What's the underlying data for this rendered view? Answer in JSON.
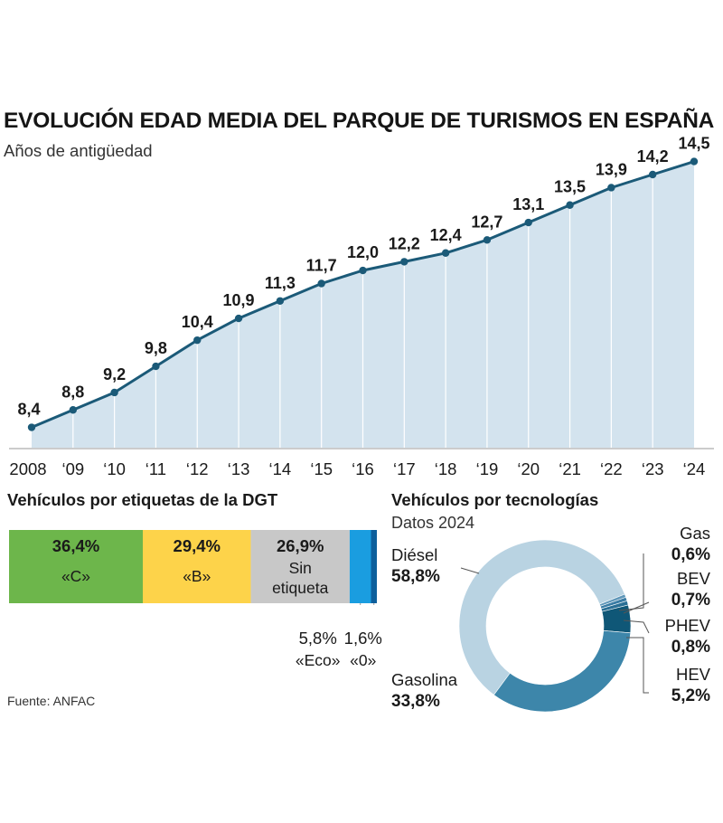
{
  "title": "EVOLUCIÓN EDAD MEDIA DEL PARQUE DE TURISMOS EN ESPAÑA",
  "subtitle": "Años de antigüedad",
  "chart_data": [
    {
      "type": "area",
      "title": "EVOLUCIÓN EDAD MEDIA DEL PARQUE DE TURISMOS EN ESPAÑA",
      "ylabel": "Años de antigüedad",
      "categories": [
        "2008",
        "‘09",
        "‘10",
        "‘11",
        "‘12",
        "‘13",
        "‘14",
        "‘15",
        "‘16",
        "‘17",
        "‘18",
        "‘19",
        "‘20",
        "‘21",
        "‘22",
        "‘23",
        "‘24"
      ],
      "values": [
        8.4,
        8.8,
        9.2,
        9.8,
        10.4,
        10.9,
        11.3,
        11.7,
        12.0,
        12.2,
        12.4,
        12.7,
        13.1,
        13.5,
        13.9,
        14.2,
        14.5
      ],
      "value_labels": [
        "8,4",
        "8,8",
        "9,2",
        "9,8",
        "10,4",
        "10,9",
        "11,3",
        "11,7",
        "12,0",
        "12,2",
        "12,4",
        "12,7",
        "13,1",
        "13,5",
        "13,9",
        "14,2",
        "14,5"
      ],
      "ylim": [
        7,
        15.3
      ],
      "grid": false,
      "colors": {
        "line": "#1b5a78",
        "fill": "#d3e3ee",
        "grid": "#ffffff",
        "axis": "#999999"
      }
    },
    {
      "type": "bar",
      "stacked": true,
      "title": "Vehículos por etiquetas de la DGT",
      "segments": [
        {
          "value": 36.4,
          "label": "36,4%",
          "tag": "«C»",
          "color": "#6db64b"
        },
        {
          "value": 29.4,
          "label": "29,4%",
          "tag": "«B»",
          "color": "#fdd34a"
        },
        {
          "value": 26.9,
          "label": "26,9%",
          "tag": "Sin etiqueta",
          "color": "#c8c8c8"
        },
        {
          "value": 5.8,
          "label": "5,8%",
          "tag": "«Eco»",
          "color": "#1a9de0"
        },
        {
          "value": 1.6,
          "label": "1,6%",
          "tag": "«0»",
          "color": "#0d5f9c"
        }
      ]
    },
    {
      "type": "pie",
      "donut": true,
      "title": "Vehículos por tecnologías",
      "subtitle": "Datos 2024",
      "slices": [
        {
          "name": "Diésel",
          "value": 58.8,
          "label": "58,8%",
          "color": "#b9d3e2"
        },
        {
          "name": "Gas",
          "value": 0.6,
          "label": "0,6%",
          "color": "#5f97b9"
        },
        {
          "name": "BEV",
          "value": 0.7,
          "label": "0,7%",
          "color": "#3a7ca4"
        },
        {
          "name": "PHEV",
          "value": 0.8,
          "label": "0,8%",
          "color": "#2a6f95"
        },
        {
          "name": "HEV",
          "value": 5.2,
          "label": "5,2%",
          "color": "#0f5777"
        },
        {
          "name": "Gasolina",
          "value": 33.8,
          "label": "33,8%",
          "color": "#3d86aa"
        }
      ]
    }
  ],
  "source": "Fuente: ANFAC"
}
